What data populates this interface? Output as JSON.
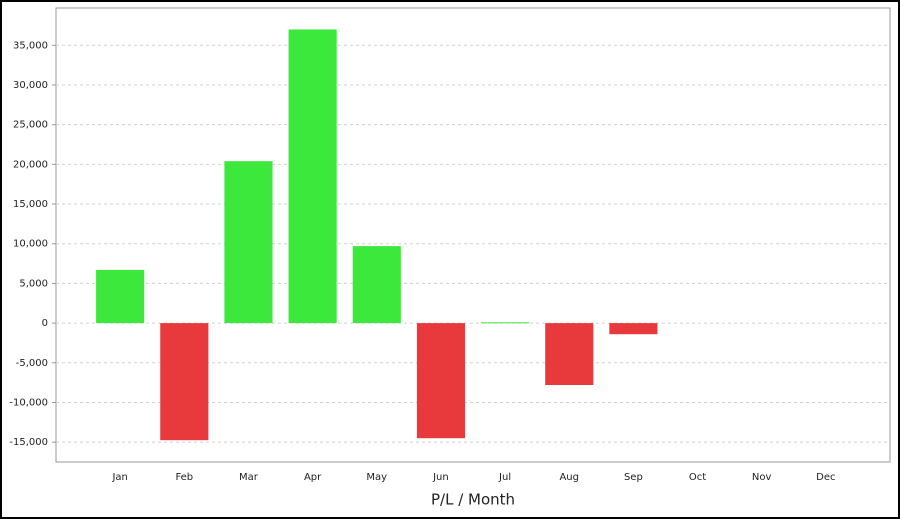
{
  "chart_data": {
    "type": "bar",
    "x_label": "P/L / Month",
    "categories": [
      "Jan",
      "Feb",
      "Mar",
      "Apr",
      "May",
      "Jun",
      "Jul",
      "Aug",
      "Sep",
      "Oct",
      "Nov",
      "Dec"
    ],
    "values": [
      6700,
      -14750,
      20400,
      37000,
      9700,
      -14500,
      100,
      -7800,
      -1400,
      null,
      null,
      null
    ],
    "positive_color": "#3de83d",
    "negative_color": "#e8393d",
    "ylim": [
      -17500,
      39700
    ],
    "yticks": [
      {
        "value": -15000,
        "label": "-15,000"
      },
      {
        "value": -10000,
        "label": "-10,000"
      },
      {
        "value": -5000,
        "label": "-5,000"
      },
      0,
      {
        "value": 5000,
        "label": "5,000"
      },
      {
        "value": 10000,
        "label": "10,000"
      },
      {
        "value": 15000,
        "label": "15,000"
      },
      {
        "value": 20000,
        "label": "20,000"
      },
      {
        "value": 25000,
        "label": "25,000"
      },
      {
        "value": 30000,
        "label": "30,000"
      },
      {
        "value": 35000,
        "label": "35,000"
      }
    ],
    "grid": true
  }
}
